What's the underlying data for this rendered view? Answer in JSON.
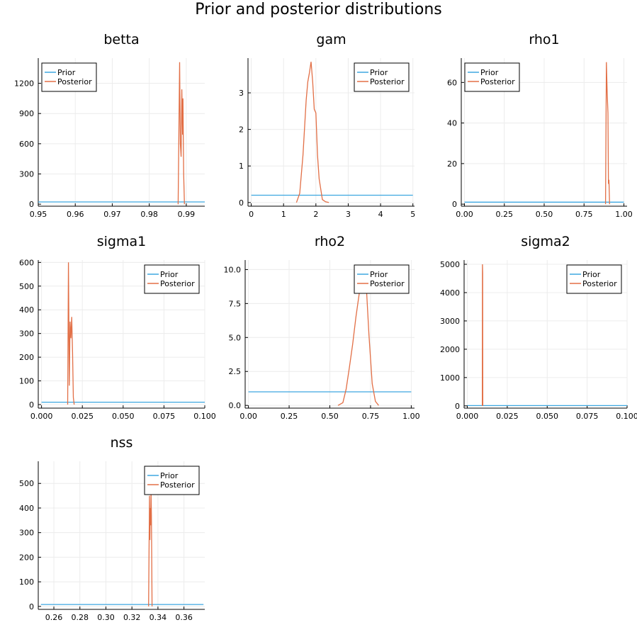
{
  "title": "Prior and posterior distributions",
  "colors": {
    "prior": "#3da7e0",
    "posterior": "#e26f46",
    "grid": "#ececec",
    "axis": "#000000"
  },
  "legend": {
    "prior": "Prior",
    "posterior": "Posterior"
  },
  "chart_data": [
    {
      "type": "line",
      "title": "betta",
      "xlim": [
        0.95,
        0.995
      ],
      "ylim": [
        -20,
        1450
      ],
      "xticks": [
        0.95,
        0.96,
        0.97,
        0.98,
        0.99
      ],
      "xtick_labels": [
        "0.95",
        "0.96",
        "0.97",
        "0.98",
        "0.99"
      ],
      "yticks": [
        0,
        300,
        600,
        900,
        1200
      ],
      "ytick_labels": [
        "0",
        "300",
        "600",
        "900",
        "1200"
      ],
      "legend_position": "top-left",
      "series": [
        {
          "name": "Prior",
          "x": [
            0.95,
            0.995
          ],
          "y": [
            22,
            22
          ]
        },
        {
          "name": "Posterior",
          "x": [
            0.9878,
            0.9882,
            0.9884,
            0.9886,
            0.9888,
            0.989,
            0.9891,
            0.9893,
            0.9895
          ],
          "y": [
            0,
            1410,
            600,
            470,
            1140,
            690,
            1050,
            300,
            0
          ]
        }
      ]
    },
    {
      "type": "line",
      "title": "gam",
      "xlim": [
        -0.1,
        5.05
      ],
      "ylim": [
        -0.1,
        3.95
      ],
      "xticks": [
        0,
        1,
        2,
        3,
        4,
        5
      ],
      "xtick_labels": [
        "0",
        "1",
        "2",
        "3",
        "4",
        "5"
      ],
      "yticks": [
        0,
        1,
        2,
        3
      ],
      "ytick_labels": [
        "0",
        "1",
        "2",
        "3"
      ],
      "legend_position": "top-right",
      "series": [
        {
          "name": "Prior",
          "x": [
            0,
            5
          ],
          "y": [
            0.2,
            0.2
          ]
        },
        {
          "name": "Posterior",
          "x": [
            1.4,
            1.5,
            1.6,
            1.7,
            1.75,
            1.8,
            1.85,
            1.9,
            1.95,
            2.0,
            2.05,
            2.1,
            2.2,
            2.3,
            2.4
          ],
          "y": [
            0,
            0.25,
            1.3,
            2.8,
            3.3,
            3.55,
            3.85,
            3.3,
            2.55,
            2.45,
            1.3,
            0.65,
            0.08,
            0.02,
            0
          ]
        }
      ]
    },
    {
      "type": "line",
      "title": "rho1",
      "xlim": [
        -0.02,
        1.02
      ],
      "ylim": [
        -1,
        72
      ],
      "xticks": [
        0,
        0.25,
        0.5,
        0.75,
        1.0
      ],
      "xtick_labels": [
        "0.00",
        "0.25",
        "0.50",
        "0.75",
        "1.00"
      ],
      "yticks": [
        0,
        20,
        40,
        60
      ],
      "ytick_labels": [
        "0",
        "20",
        "40",
        "60"
      ],
      "legend_position": "top-left",
      "series": [
        {
          "name": "Prior",
          "x": [
            0,
            1
          ],
          "y": [
            1,
            1
          ]
        },
        {
          "name": "Posterior",
          "x": [
            0.885,
            0.89,
            0.895,
            0.9,
            0.903,
            0.906,
            0.91
          ],
          "y": [
            0,
            70,
            55,
            45,
            10,
            12,
            0
          ]
        }
      ]
    },
    {
      "type": "line",
      "title": "sigma1",
      "xlim": [
        -0.002,
        0.1
      ],
      "ylim": [
        -15,
        610
      ],
      "xticks": [
        0,
        0.025,
        0.05,
        0.075,
        0.1
      ],
      "xtick_labels": [
        "0.000",
        "0.025",
        "0.050",
        "0.075",
        "0.100"
      ],
      "yticks": [
        0,
        100,
        200,
        300,
        400,
        500,
        600
      ],
      "ytick_labels": [
        "0",
        "100",
        "200",
        "300",
        "400",
        "500",
        "600"
      ],
      "legend_position": "top-right",
      "series": [
        {
          "name": "Prior",
          "x": [
            0,
            0.1
          ],
          "y": [
            10,
            10
          ]
        },
        {
          "name": "Posterior",
          "x": [
            0.016,
            0.0165,
            0.017,
            0.0175,
            0.018,
            0.0185,
            0.019,
            0.0195,
            0.02
          ],
          "y": [
            0,
            600,
            80,
            350,
            280,
            370,
            220,
            30,
            0
          ]
        }
      ]
    },
    {
      "type": "line",
      "title": "rho2",
      "xlim": [
        -0.02,
        1.02
      ],
      "ylim": [
        -0.2,
        10.7
      ],
      "xticks": [
        0,
        0.25,
        0.5,
        0.75,
        1.0
      ],
      "xtick_labels": [
        "0.00",
        "0.25",
        "0.50",
        "0.75",
        "1.00"
      ],
      "yticks": [
        0,
        2.5,
        5,
        7.5,
        10
      ],
      "ytick_labels": [
        "0.0",
        "2.5",
        "5.0",
        "7.5",
        "10.0"
      ],
      "legend_position": "top-right",
      "series": [
        {
          "name": "Prior",
          "x": [
            0,
            1
          ],
          "y": [
            1,
            1
          ]
        },
        {
          "name": "Posterior",
          "x": [
            0.55,
            0.58,
            0.6,
            0.62,
            0.64,
            0.66,
            0.68,
            0.7,
            0.72,
            0.74,
            0.76,
            0.78,
            0.8
          ],
          "y": [
            0,
            0.2,
            1.2,
            2.8,
            4.5,
            6.5,
            8.2,
            10.3,
            9.6,
            5.2,
            1.6,
            0.3,
            0
          ]
        }
      ]
    },
    {
      "type": "line",
      "title": "sigma2",
      "xlim": [
        -0.002,
        0.1
      ],
      "ylim": [
        -80,
        5150
      ],
      "xticks": [
        0,
        0.025,
        0.05,
        0.075,
        0.1
      ],
      "xtick_labels": [
        "0.000",
        "0.025",
        "0.050",
        "0.075",
        "0.100"
      ],
      "yticks": [
        0,
        1000,
        2000,
        3000,
        4000,
        5000
      ],
      "ytick_labels": [
        "0",
        "1000",
        "2000",
        "3000",
        "4000",
        "5000"
      ],
      "legend_position": "top-right",
      "series": [
        {
          "name": "Prior",
          "x": [
            0,
            0.1
          ],
          "y": [
            10,
            10
          ]
        },
        {
          "name": "Posterior",
          "x": [
            0.0094,
            0.0095,
            0.0096,
            0.0097
          ],
          "y": [
            0,
            5000,
            4700,
            0
          ]
        }
      ]
    },
    {
      "type": "line",
      "title": "nss",
      "xlim": [
        0.248,
        0.376
      ],
      "ylim": [
        -12,
        590
      ],
      "xticks": [
        0.26,
        0.28,
        0.3,
        0.32,
        0.34,
        0.36
      ],
      "xtick_labels": [
        "0.26",
        "0.28",
        "0.30",
        "0.32",
        "0.34",
        "0.36"
      ],
      "yticks": [
        0,
        100,
        200,
        300,
        400,
        500
      ],
      "ytick_labels": [
        "0",
        "100",
        "200",
        "300",
        "400",
        "500"
      ],
      "legend_position": "top-right",
      "series": [
        {
          "name": "Prior",
          "x": [
            0.25,
            0.375
          ],
          "y": [
            8,
            8
          ]
        },
        {
          "name": "Posterior",
          "x": [
            0.3328,
            0.3335,
            0.3338,
            0.3341,
            0.3344,
            0.3347,
            0.335,
            0.3355
          ],
          "y": [
            0,
            450,
            270,
            400,
            330,
            460,
            370,
            0
          ]
        }
      ]
    }
  ]
}
